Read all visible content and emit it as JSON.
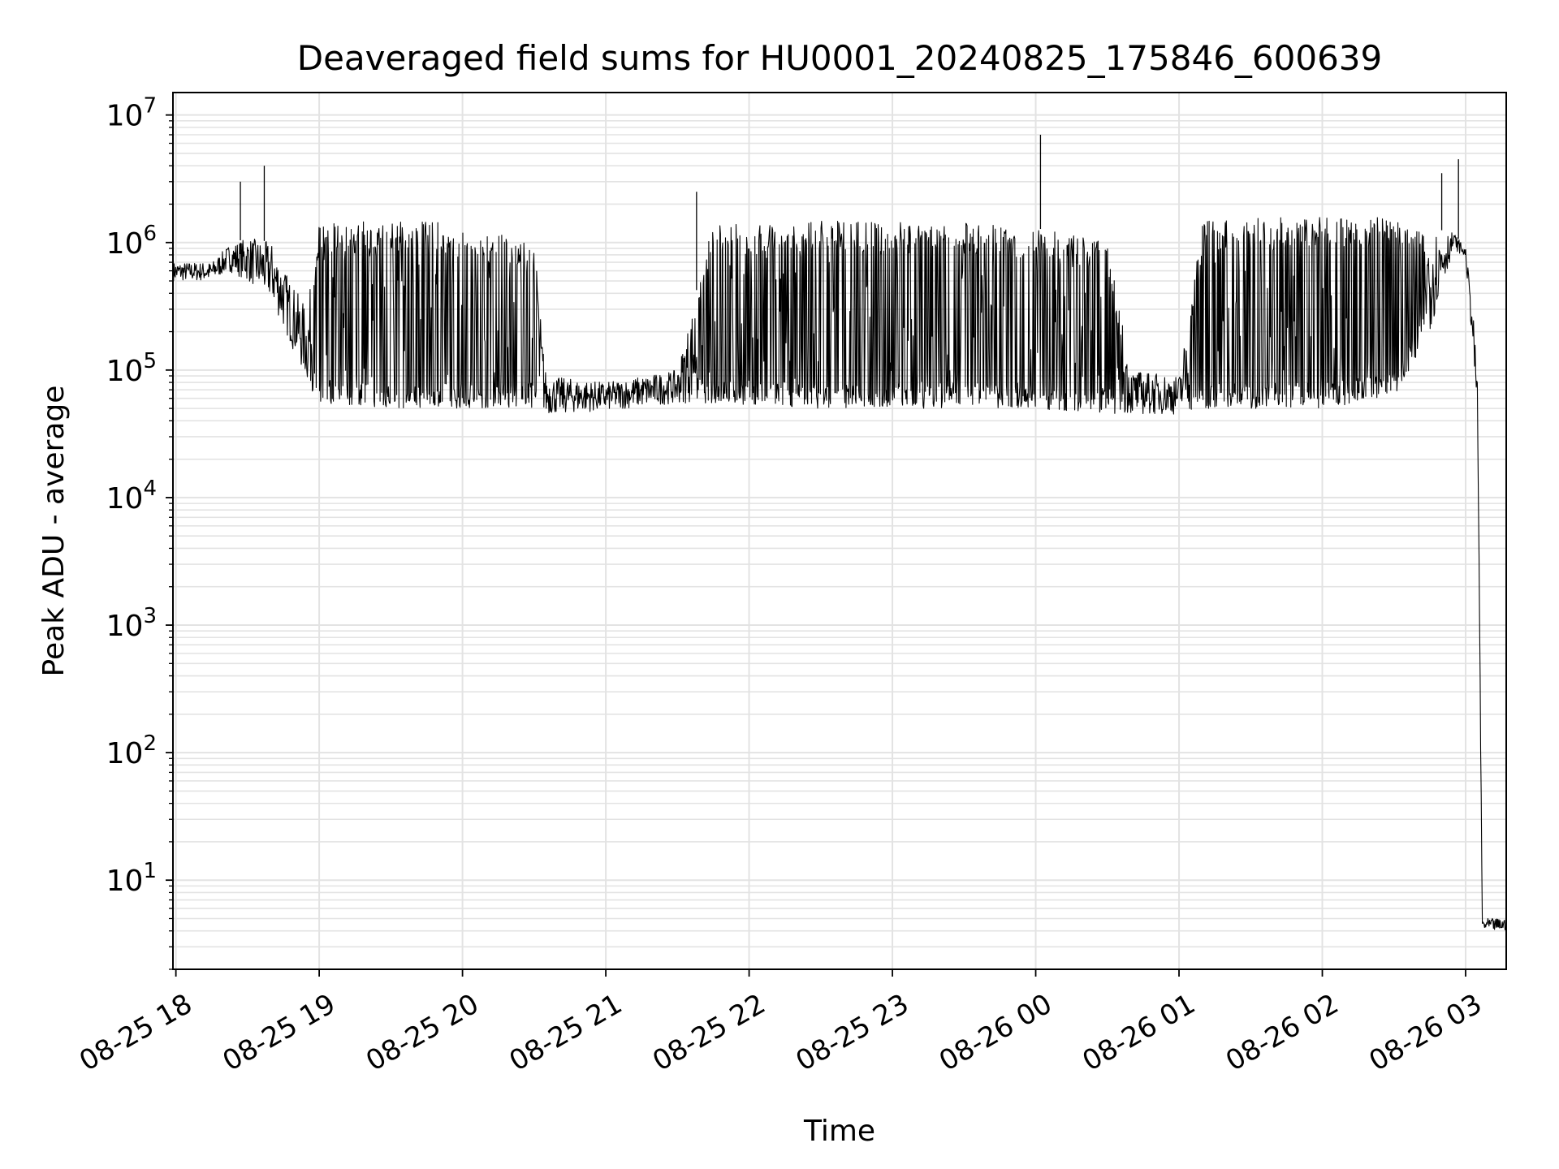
{
  "chart_data": {
    "type": "line",
    "title": "Deaveraged field sums for HU0001_20240825_175846_600639",
    "xlabel": "Time",
    "ylabel": "Peak ADU - average",
    "yscale": "log",
    "ylim": [
      2,
      15000000
    ],
    "xlim": [
      "2024-08-25 17:58:46",
      "2024-08-26 03:17:00"
    ],
    "grid": true,
    "x_ticks": [
      {
        "t": "2024-08-25 18:00",
        "label": "08-25 18"
      },
      {
        "t": "2024-08-25 19:00",
        "label": "08-25 19"
      },
      {
        "t": "2024-08-25 20:00",
        "label": "08-25 20"
      },
      {
        "t": "2024-08-25 21:00",
        "label": "08-25 21"
      },
      {
        "t": "2024-08-25 22:00",
        "label": "08-25 22"
      },
      {
        "t": "2024-08-25 23:00",
        "label": "08-25 23"
      },
      {
        "t": "2024-08-26 00:00",
        "label": "08-26 00"
      },
      {
        "t": "2024-08-26 01:00",
        "label": "08-26 01"
      },
      {
        "t": "2024-08-26 02:00",
        "label": "08-26 02"
      },
      {
        "t": "2024-08-26 03:00",
        "label": "08-26 03"
      }
    ],
    "y_ticks": [
      {
        "v": 10,
        "base": "10",
        "exp": "1"
      },
      {
        "v": 100,
        "base": "10",
        "exp": "2"
      },
      {
        "v": 1000,
        "base": "10",
        "exp": "3"
      },
      {
        "v": 10000,
        "base": "10",
        "exp": "4"
      },
      {
        "v": 100000,
        "base": "10",
        "exp": "5"
      },
      {
        "v": 1000000,
        "base": "10",
        "exp": "6"
      },
      {
        "v": 10000000,
        "base": "10",
        "exp": "7"
      }
    ],
    "series": [
      {
        "color": "#000000",
        "envelope": [
          {
            "t": "2024-08-25 17:59",
            "low": 500000,
            "high": 700000
          },
          {
            "t": "2024-08-25 18:15",
            "low": 500000,
            "high": 700000
          },
          {
            "t": "2024-08-25 18:22",
            "low": 600000,
            "high": 950000
          },
          {
            "t": "2024-08-25 18:30",
            "low": 500000,
            "high": 1100000
          },
          {
            "t": "2024-08-25 18:40",
            "low": 350000,
            "high": 1000000
          },
          {
            "t": "2024-08-25 18:48",
            "low": 160000,
            "high": 500000
          },
          {
            "t": "2024-08-25 18:55",
            "low": 80000,
            "high": 300000
          },
          {
            "t": "2024-08-25 19:00",
            "low": 55000,
            "high": 1400000
          },
          {
            "t": "2024-08-25 19:30",
            "low": 50000,
            "high": 1500000
          },
          {
            "t": "2024-08-25 20:00",
            "low": 50000,
            "high": 1400000
          },
          {
            "t": "2024-08-25 20:30",
            "low": 50000,
            "high": 1000000
          },
          {
            "t": "2024-08-25 20:35",
            "low": 45000,
            "high": 90000
          },
          {
            "t": "2024-08-25 21:00",
            "low": 48000,
            "high": 80000
          },
          {
            "t": "2024-08-25 21:30",
            "low": 55000,
            "high": 100000
          },
          {
            "t": "2024-08-25 21:45",
            "low": 55000,
            "high": 1500000
          },
          {
            "t": "2024-08-25 22:30",
            "low": 50000,
            "high": 1500000
          },
          {
            "t": "2024-08-25 23:30",
            "low": 50000,
            "high": 1450000
          },
          {
            "t": "2024-08-26 00:00",
            "low": 50000,
            "high": 1300000
          },
          {
            "t": "2024-08-26 00:30",
            "low": 45000,
            "high": 1000000
          },
          {
            "t": "2024-08-26 00:40",
            "low": 45000,
            "high": 100000
          },
          {
            "t": "2024-08-26 01:00",
            "low": 45000,
            "high": 90000
          },
          {
            "t": "2024-08-26 01:10",
            "low": 50000,
            "high": 1500000
          },
          {
            "t": "2024-08-26 02:00",
            "low": 50000,
            "high": 1600000
          },
          {
            "t": "2024-08-26 02:30",
            "low": 60000,
            "high": 1600000
          },
          {
            "t": "2024-08-26 02:45",
            "low": 200000,
            "high": 1300000
          },
          {
            "t": "2024-08-26 02:55",
            "low": 900000,
            "high": 1200000
          },
          {
            "t": "2024-08-26 03:00",
            "low": 750000,
            "high": 900000
          },
          {
            "t": "2024-08-26 03:03",
            "low": 150000,
            "high": 300000
          },
          {
            "t": "2024-08-26 03:05",
            "low": 40000,
            "high": 80000
          },
          {
            "t": "2024-08-26 03:07",
            "low": 4,
            "high": 5
          },
          {
            "t": "2024-08-26 03:17",
            "low": 4,
            "high": 5
          }
        ],
        "spikes": [
          {
            "t": "2024-08-25 18:27",
            "value": 3000000
          },
          {
            "t": "2024-08-25 18:37",
            "value": 4000000
          },
          {
            "t": "2024-08-25 21:38",
            "value": 2500000
          },
          {
            "t": "2024-08-26 00:02",
            "value": 7000000
          },
          {
            "t": "2024-08-26 02:50",
            "value": 3500000
          },
          {
            "t": "2024-08-26 02:57",
            "value": 4500000
          }
        ]
      }
    ]
  }
}
